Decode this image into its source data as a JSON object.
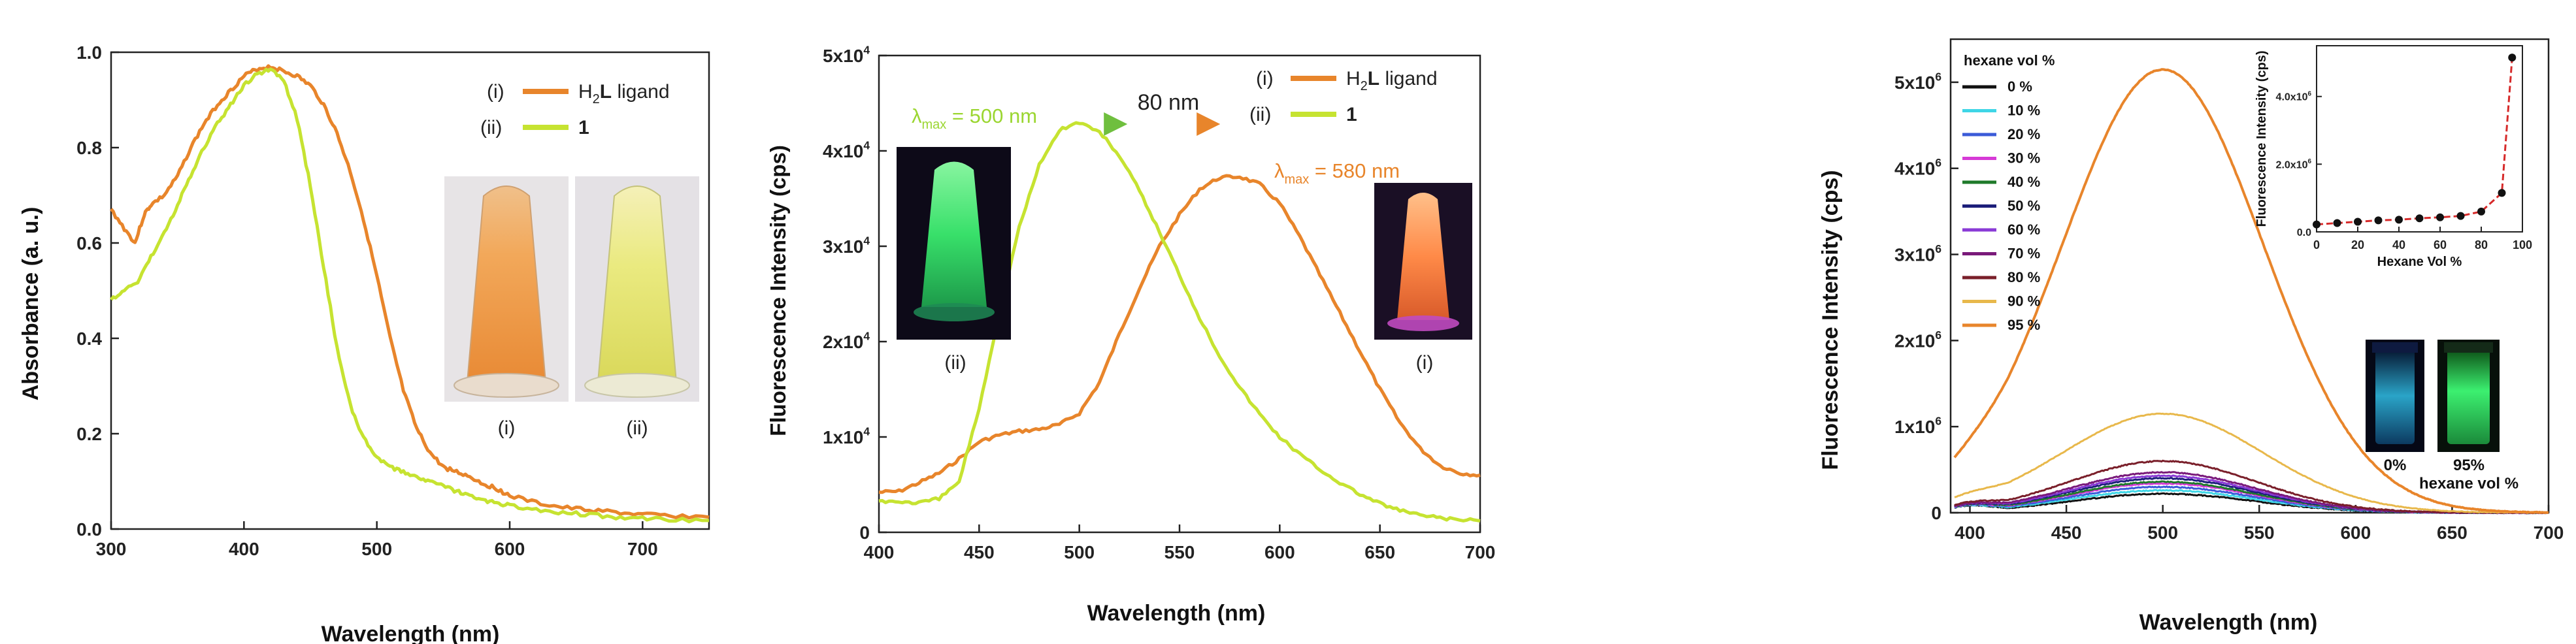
{
  "figure_caption": "",
  "chart_data": [
    {
      "type": "line",
      "panel": "absorbance",
      "xlabel": "Wavelength (nm)",
      "ylabel": "Absorbance (a. u.)",
      "xlim": [
        300,
        750
      ],
      "ylim": [
        0,
        1.0
      ],
      "xticks": [
        "300",
        "400",
        "500",
        "600",
        "700"
      ],
      "yticks": [
        "0.0",
        "0.2",
        "0.4",
        "0.6",
        "0.8",
        "1.0"
      ],
      "legend": [
        {
          "mark": "(i)",
          "label_main": "H",
          "label_sub": "2",
          "label_bold": "L",
          "label_rest": " ligand"
        },
        {
          "mark": "(ii)",
          "label_main": "",
          "label_sub": "",
          "label_bold": "1",
          "label_rest": ""
        }
      ],
      "photo_labels": [
        "(i)",
        "(ii)"
      ],
      "series": [
        {
          "name": "H2L ligand",
          "color": "#e8852b",
          "x": [
            300,
            310,
            318,
            325,
            330,
            340,
            350,
            360,
            370,
            380,
            390,
            400,
            410,
            420,
            430,
            440,
            450,
            460,
            470,
            480,
            490,
            500,
            510,
            520,
            530,
            540,
            550,
            560,
            570,
            580,
            590,
            600,
            620,
            640,
            660,
            680,
            700,
            720,
            750
          ],
          "y": [
            0.67,
            0.63,
            0.6,
            0.66,
            0.68,
            0.7,
            0.74,
            0.8,
            0.85,
            0.89,
            0.92,
            0.95,
            0.965,
            0.97,
            0.96,
            0.95,
            0.93,
            0.89,
            0.83,
            0.75,
            0.65,
            0.53,
            0.4,
            0.29,
            0.21,
            0.16,
            0.13,
            0.12,
            0.11,
            0.095,
            0.085,
            0.07,
            0.055,
            0.045,
            0.04,
            0.035,
            0.03,
            0.028,
            0.025
          ]
        },
        {
          "name": "1",
          "color": "#c6e331",
          "x": [
            300,
            310,
            320,
            330,
            340,
            350,
            360,
            370,
            380,
            390,
            400,
            410,
            420,
            430,
            440,
            450,
            460,
            470,
            480,
            490,
            500,
            510,
            520,
            530,
            540,
            550,
            560,
            570,
            580,
            590,
            600,
            620,
            640,
            660,
            680,
            700,
            720,
            750
          ],
          "y": [
            0.48,
            0.5,
            0.52,
            0.57,
            0.62,
            0.68,
            0.74,
            0.8,
            0.85,
            0.89,
            0.93,
            0.955,
            0.965,
            0.94,
            0.86,
            0.72,
            0.55,
            0.38,
            0.26,
            0.19,
            0.15,
            0.13,
            0.12,
            0.11,
            0.1,
            0.09,
            0.08,
            0.07,
            0.06,
            0.055,
            0.05,
            0.04,
            0.035,
            0.03,
            0.025,
            0.022,
            0.02,
            0.018
          ]
        }
      ]
    },
    {
      "type": "line",
      "panel": "fluorescence",
      "xlabel": "Wavelength (nm)",
      "ylabel": "Fluorescence Intensity (cps)",
      "xlim": [
        400,
        700
      ],
      "ylim": [
        0,
        50000
      ],
      "xticks": [
        "400",
        "450",
        "500",
        "550",
        "600",
        "650",
        "700"
      ],
      "yticks": [
        {
          "mantissa": "0",
          "exp": ""
        },
        {
          "mantissa": "1x10",
          "exp": "4"
        },
        {
          "mantissa": "2x10",
          "exp": "4"
        },
        {
          "mantissa": "3x10",
          "exp": "4"
        },
        {
          "mantissa": "4x10",
          "exp": "4"
        },
        {
          "mantissa": "5x10",
          "exp": "4"
        }
      ],
      "legend": [
        {
          "mark": "(i)",
          "label_main": "H",
          "label_sub": "2",
          "label_bold": "L",
          "label_rest": " ligand"
        },
        {
          "mark": "(ii)",
          "label_main": "",
          "label_sub": "",
          "label_bold": "1",
          "label_rest": ""
        }
      ],
      "annotations": {
        "lambda_green": {
          "sym": "λ",
          "sub": "max",
          "text": " = 500 nm"
        },
        "lambda_orange": {
          "sym": "λ",
          "sub": "max",
          "text": " = 580 nm"
        },
        "shift": "80 nm"
      },
      "photo_labels": [
        "(ii)",
        "(i)"
      ],
      "series": [
        {
          "name": "H2L ligand",
          "color": "#e8852b",
          "x": [
            400,
            410,
            420,
            430,
            440,
            450,
            460,
            470,
            480,
            490,
            500,
            510,
            520,
            530,
            540,
            550,
            560,
            570,
            580,
            590,
            600,
            610,
            620,
            630,
            640,
            650,
            660,
            670,
            680,
            690,
            700
          ],
          "y": [
            4200,
            4300,
            5200,
            6200,
            7700,
            9500,
            10200,
            10600,
            10800,
            11300,
            12500,
            15700,
            20800,
            25600,
            30000,
            33300,
            36000,
            37200,
            37300,
            36500,
            34500,
            31000,
            27000,
            23000,
            19000,
            15000,
            11500,
            8800,
            7000,
            6200,
            6000
          ]
        },
        {
          "name": "1",
          "color": "#c6e331",
          "x": [
            400,
            410,
            420,
            430,
            440,
            450,
            460,
            470,
            480,
            490,
            500,
            510,
            520,
            530,
            540,
            550,
            560,
            570,
            580,
            590,
            600,
            610,
            620,
            630,
            640,
            650,
            660,
            670,
            680,
            690,
            700
          ],
          "y": [
            3300,
            3200,
            3100,
            3500,
            5300,
            13000,
            23000,
            32000,
            38500,
            42200,
            43000,
            42000,
            39500,
            35800,
            31500,
            27000,
            22500,
            18500,
            15200,
            12400,
            10000,
            8200,
            6600,
            5200,
            4000,
            3000,
            2300,
            1800,
            1500,
            1300,
            1200
          ]
        }
      ]
    },
    {
      "type": "line",
      "panel": "aie",
      "xlabel": "Wavelength (nm)",
      "ylabel": "Fluorescence Intensity (cps)",
      "xlim": [
        390,
        700
      ],
      "ylim": [
        0,
        5500000
      ],
      "xticks": [
        "400",
        "450",
        "500",
        "550",
        "600",
        "650",
        "700"
      ],
      "yticks": [
        {
          "mantissa": "0",
          "exp": ""
        },
        {
          "mantissa": "1x10",
          "exp": "6"
        },
        {
          "mantissa": "2x10",
          "exp": "6"
        },
        {
          "mantissa": "3x10",
          "exp": "6"
        },
        {
          "mantissa": "4x10",
          "exp": "6"
        },
        {
          "mantissa": "5x10",
          "exp": "6"
        }
      ],
      "legend_title": "hexane vol %",
      "series": [
        {
          "name": "0 %",
          "color": "#111111",
          "peak": 220000
        },
        {
          "name": "10 %",
          "color": "#3fd6e6",
          "peak": 260000
        },
        {
          "name": "20 %",
          "color": "#3b5bd8",
          "peak": 300000
        },
        {
          "name": "30 %",
          "color": "#d63ad6",
          "peak": 340000
        },
        {
          "name": "40 %",
          "color": "#1f7a2a",
          "peak": 360000
        },
        {
          "name": "50 %",
          "color": "#1d1f7a",
          "peak": 400000
        },
        {
          "name": "60 %",
          "color": "#8a3ad6",
          "peak": 430000
        },
        {
          "name": "70 %",
          "color": "#7a1a7a",
          "peak": 470000
        },
        {
          "name": "80 %",
          "color": "#7a1f2a",
          "peak": 600000
        },
        {
          "name": "90 %",
          "color": "#e8b84b",
          "peak": 1150000
        },
        {
          "name": "95 %",
          "color": "#e8852b",
          "peak": 5150000
        }
      ],
      "inset": {
        "type": "scatter",
        "xlabel": "Hexane Vol %",
        "ylabel": "Fluorescence Intensity (cps)",
        "xlim": [
          0,
          100
        ],
        "ylim": [
          0,
          5500000
        ],
        "xticks": [
          "0",
          "20",
          "40",
          "60",
          "80",
          "100"
        ],
        "yticks": [
          {
            "mantissa": "0.0",
            "exp": ""
          },
          {
            "mantissa": "2.0x10",
            "exp": "6"
          },
          {
            "mantissa": "4.0x10",
            "exp": "6"
          }
        ],
        "x": [
          0,
          10,
          20,
          30,
          40,
          50,
          60,
          70,
          80,
          90,
          95
        ],
        "y": [
          220000,
          260000,
          300000,
          340000,
          360000,
          400000,
          430000,
          470000,
          600000,
          1150000,
          5150000
        ],
        "line_color": "#d62a2a",
        "marker_color": "#111111"
      },
      "vial_labels": {
        "left": "0%",
        "right": "95%",
        "caption": "hexane vol %"
      }
    }
  ]
}
